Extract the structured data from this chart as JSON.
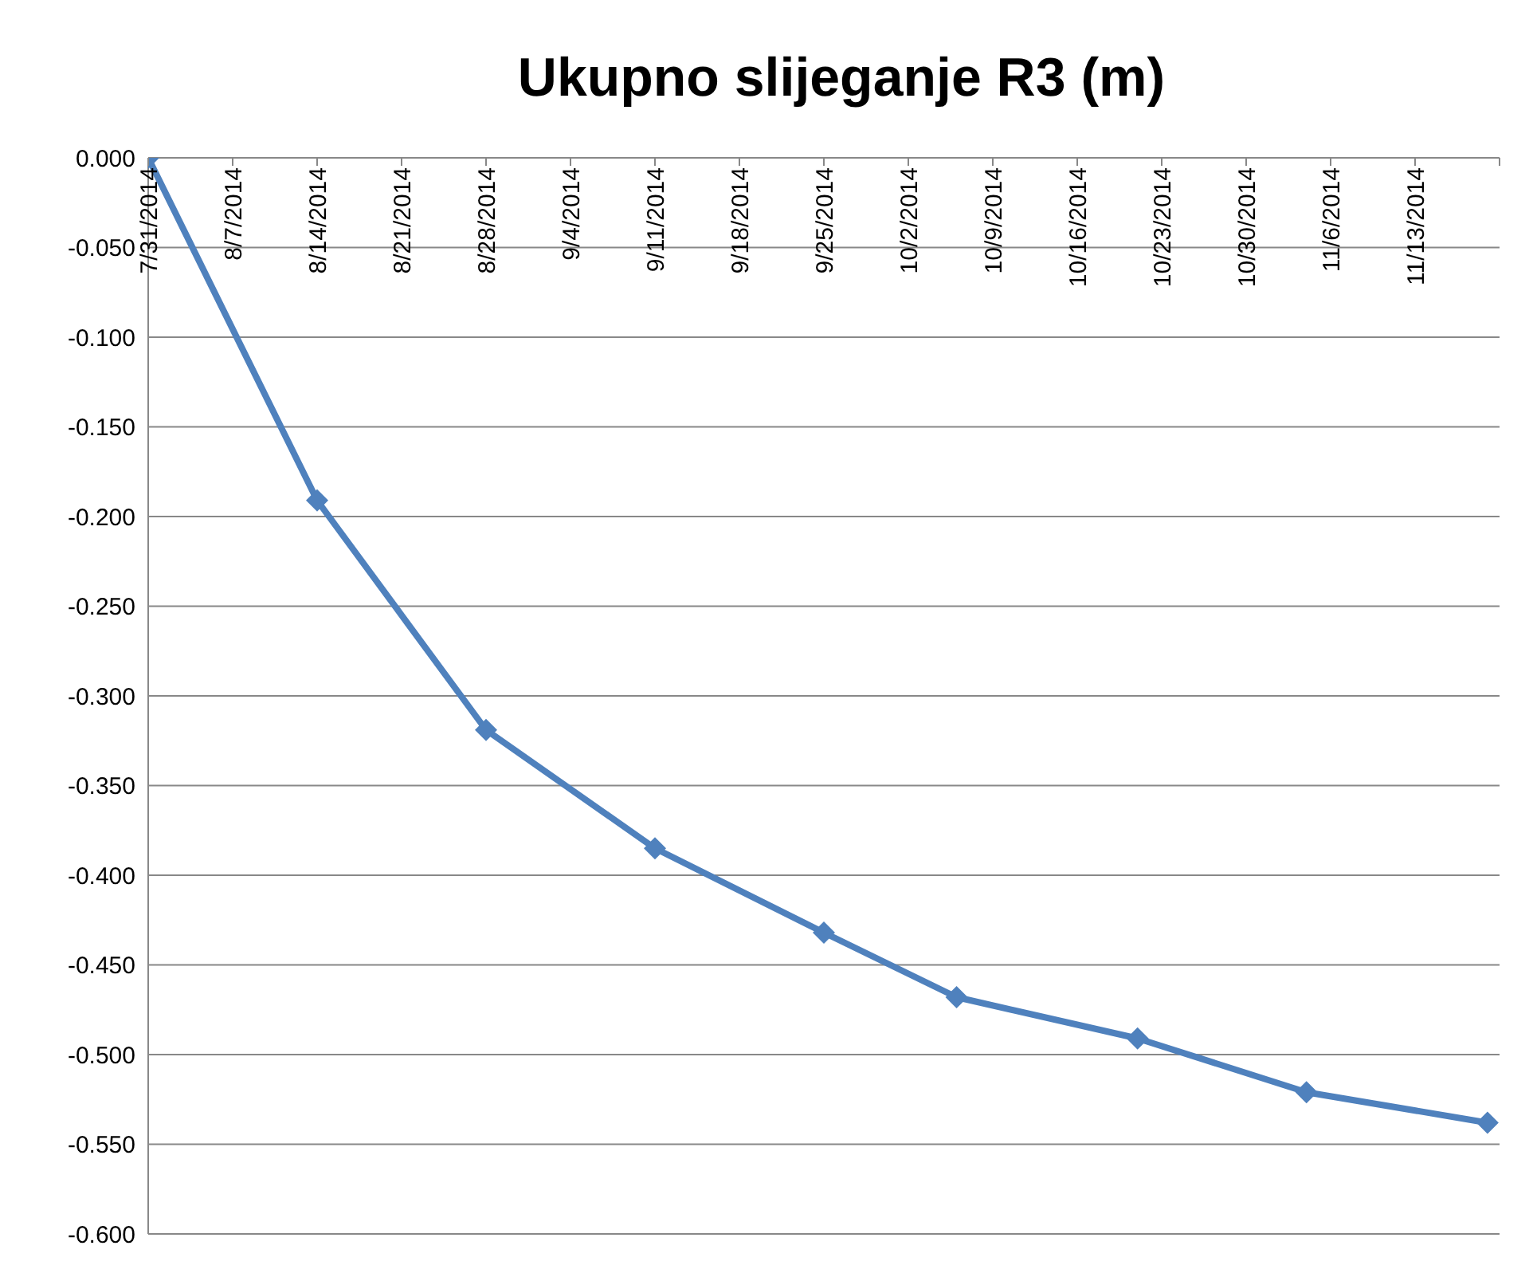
{
  "chart_data": {
    "type": "line",
    "title": "Ukupno slijeganje R3 (m)",
    "x": [
      "2014-07-31",
      "2014-08-14",
      "2014-08-28",
      "2014-09-11",
      "2014-09-25",
      "2014-10-06",
      "2014-10-21",
      "2014-11-04",
      "2014-11-19"
    ],
    "series": [
      {
        "color": "#4f81bd",
        "values": [
          0,
          -0.191,
          -0.319,
          -0.385,
          -0.432,
          -0.468,
          -0.491,
          -0.521,
          -0.538
        ]
      }
    ],
    "marker": "diamond",
    "grid": "y",
    "legend": false,
    "ylim": [
      -0.6,
      0
    ],
    "yticks": [
      {
        "value": 0,
        "label": "0.000"
      },
      {
        "value": -0.05,
        "label": "-0.050"
      },
      {
        "value": -0.1,
        "label": "-0.100"
      },
      {
        "value": -0.15,
        "label": "-0.150"
      },
      {
        "value": -0.2,
        "label": "-0.200"
      },
      {
        "value": -0.25,
        "label": "-0.250"
      },
      {
        "value": -0.3,
        "label": "-0.300"
      },
      {
        "value": -0.35,
        "label": "-0.350"
      },
      {
        "value": -0.4,
        "label": "-0.400"
      },
      {
        "value": -0.45,
        "label": "-0.450"
      },
      {
        "value": -0.5,
        "label": "-0.500"
      },
      {
        "value": -0.55,
        "label": "-0.550"
      },
      {
        "value": -0.6,
        "label": "-0.600"
      }
    ],
    "xlim": [
      "2014-07-31",
      "2014-11-20"
    ],
    "xticks": [
      {
        "value": "2014-07-31",
        "label": "7/31/2014"
      },
      {
        "value": "2014-08-07",
        "label": "8/7/2014"
      },
      {
        "value": "2014-08-14",
        "label": "8/14/2014"
      },
      {
        "value": "2014-08-21",
        "label": "8/21/2014"
      },
      {
        "value": "2014-08-28",
        "label": "8/28/2014"
      },
      {
        "value": "2014-09-04",
        "label": "9/4/2014"
      },
      {
        "value": "2014-09-11",
        "label": "9/11/2014"
      },
      {
        "value": "2014-09-18",
        "label": "9/18/2014"
      },
      {
        "value": "2014-09-25",
        "label": "9/25/2014"
      },
      {
        "value": "2014-10-02",
        "label": "10/2/2014"
      },
      {
        "value": "2014-10-09",
        "label": "10/9/2014"
      },
      {
        "value": "2014-10-16",
        "label": "10/16/2014"
      },
      {
        "value": "2014-10-23",
        "label": "10/23/2014"
      },
      {
        "value": "2014-10-30",
        "label": "10/30/2014"
      },
      {
        "value": "2014-11-06",
        "label": "11/6/2014"
      },
      {
        "value": "2014-11-13",
        "label": "11/13/2014"
      },
      {
        "value": "2014-11-20",
        "label": null
      }
    ]
  }
}
